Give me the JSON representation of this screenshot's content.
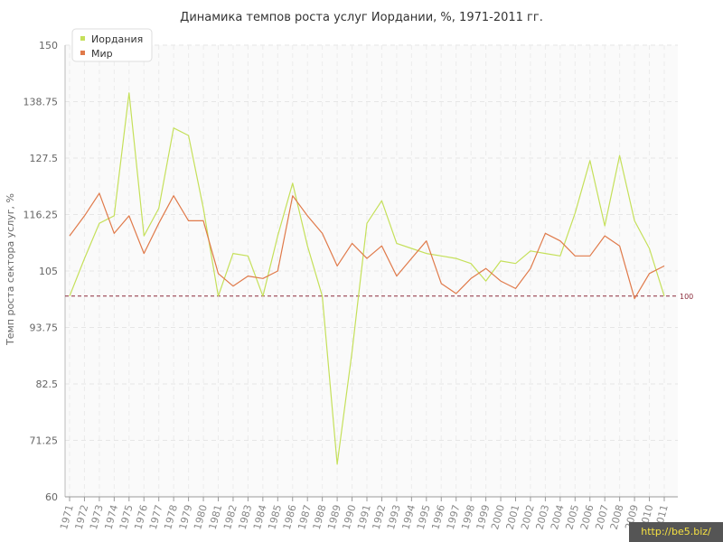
{
  "chart_data": {
    "type": "line",
    "title": "Динамика темпов роста услуг Иордании, %, 1971-2011 гг.",
    "ylabel": "Темп роста сектора услуг, %",
    "xlabel": "",
    "ylim": [
      60,
      150
    ],
    "yticks": [
      "60",
      "71.25",
      "82.5",
      "93.75",
      "105",
      "116.25",
      "127.5",
      "138.75",
      "150"
    ],
    "categories": [
      "1971",
      "1972",
      "1973",
      "1974",
      "1975",
      "1976",
      "1977",
      "1978",
      "1979",
      "1980",
      "1981",
      "1982",
      "1983",
      "1984",
      "1985",
      "1986",
      "1987",
      "1988",
      "1989",
      "1990",
      "1991",
      "1992",
      "1993",
      "1994",
      "1995",
      "1996",
      "1997",
      "1998",
      "1999",
      "2000",
      "2001",
      "2002",
      "2003",
      "2004",
      "2005",
      "2006",
      "2007",
      "2008",
      "2009",
      "2010",
      "2011"
    ],
    "series": [
      {
        "name": "Иордания",
        "color": "#c5e05a",
        "values": [
          100,
          107.5,
          114.5,
          116,
          140.5,
          112,
          117.5,
          133.5,
          132,
          117.5,
          100,
          108.5,
          108,
          100,
          112,
          122.5,
          110,
          100,
          66.5,
          89,
          114.5,
          119,
          110.5,
          109.5,
          108.5,
          108,
          107.5,
          106.5,
          103,
          107,
          106.5,
          109,
          108.5,
          108,
          116.5,
          127,
          114,
          128,
          115,
          109.5,
          100
        ]
      },
      {
        "name": "Мир",
        "color": "#e07a4a",
        "values": [
          112,
          116,
          120.5,
          112.5,
          116,
          108.5,
          114.5,
          120,
          115,
          115,
          104.5,
          102,
          104,
          103.5,
          105,
          120,
          116,
          112.5,
          106,
          110.5,
          107.5,
          110,
          104,
          107.5,
          111,
          102.5,
          100.5,
          103.5,
          105.5,
          103,
          101.5,
          105.5,
          112.5,
          111,
          108,
          108,
          112,
          110,
          99.5,
          104.5,
          106
        ]
      }
    ],
    "reference_line": {
      "value": 100,
      "label": "100",
      "color": "#8a2a3a"
    },
    "legend_position": "top-left",
    "grid": true,
    "watermark": "http://be5.biz/"
  }
}
